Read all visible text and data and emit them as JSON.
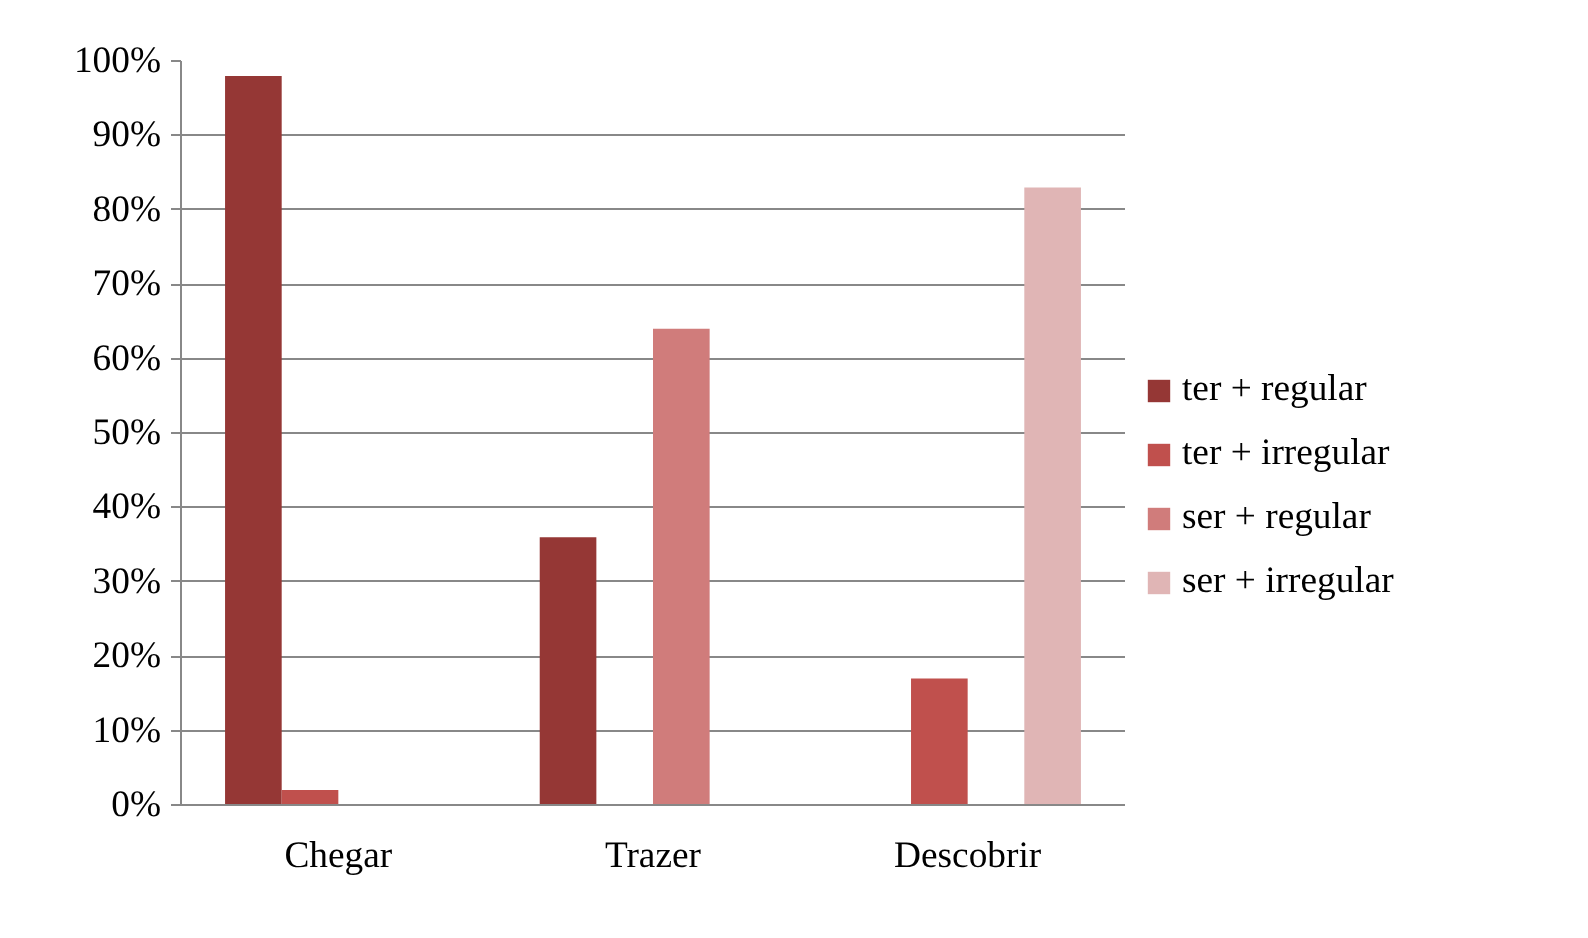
{
  "chart_data": {
    "type": "bar",
    "categories": [
      "Chegar",
      "Trazer",
      "Descobrir"
    ],
    "series": [
      {
        "name": "ter + regular",
        "color": "#953735",
        "values": [
          98,
          36,
          0
        ]
      },
      {
        "name": "ter + irregular",
        "color": "#c0504d",
        "values": [
          2,
          0,
          17
        ]
      },
      {
        "name": "ser + regular",
        "color": "#d07c7b",
        "values": [
          0,
          64,
          0
        ]
      },
      {
        "name": "ser + irregular",
        "color": "#e0b5b5",
        "values": [
          0,
          0,
          83
        ]
      }
    ],
    "ylim": [
      0,
      100
    ],
    "yticks": [
      {
        "value": 0,
        "label": "0%"
      },
      {
        "value": 10,
        "label": "10%"
      },
      {
        "value": 20,
        "label": "20%"
      },
      {
        "value": 30,
        "label": "30%"
      },
      {
        "value": 40,
        "label": "40%"
      },
      {
        "value": 50,
        "label": "50%"
      },
      {
        "value": 60,
        "label": "60%"
      },
      {
        "value": 70,
        "label": "70%"
      },
      {
        "value": 80,
        "label": "80%"
      },
      {
        "value": 90,
        "label": "90%"
      },
      {
        "value": 100,
        "label": "100%"
      }
    ],
    "grid": "y",
    "legend": "right"
  }
}
